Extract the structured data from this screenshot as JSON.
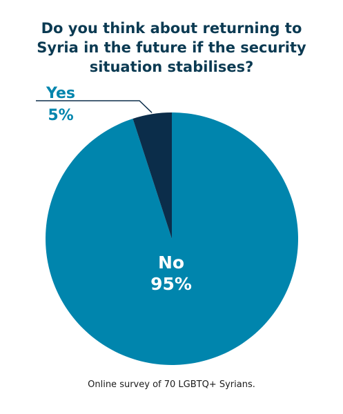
{
  "title_lines": [
    "Do you think about returning to",
    "Syria in the future if the security",
    "situation stabilises?"
  ],
  "caption": "Online survey of 70 LGBTQ+ Syrians.",
  "colors": {
    "no": "#0085ad",
    "yes": "#0b2d4a",
    "title": "#0b3a52",
    "no_label": "#ffffff",
    "yes_label": "#0085ad",
    "leader": "#0b2d4a"
  },
  "chart_data": {
    "type": "pie",
    "title": "Do you think about returning to Syria in the future if the security situation stabilises?",
    "slices": [
      {
        "name": "Yes",
        "value": 5,
        "label": "5%"
      },
      {
        "name": "No",
        "value": 95,
        "label": "95%"
      }
    ],
    "start": "12 o'clock",
    "direction": "counterclockwise from top: Yes then No"
  }
}
